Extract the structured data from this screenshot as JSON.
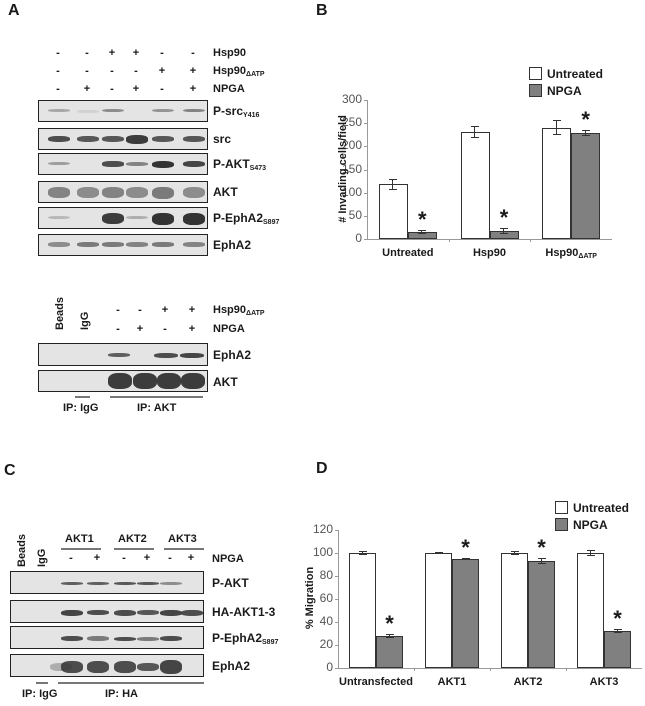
{
  "panels": {
    "A": {
      "letter": "A",
      "top_blot": {
        "conditions": [
          {
            "label": "Hsp90",
            "sub": "",
            "signs": [
              "-",
              "-",
              "+",
              "+",
              "-",
              "-"
            ]
          },
          {
            "label": "Hsp90",
            "sub": "ΔATP",
            "signs": [
              "-",
              "-",
              "-",
              "-",
              "+",
              "+"
            ]
          },
          {
            "label": "NPGA",
            "sub": "",
            "signs": [
              "-",
              "+",
              "-",
              "+",
              "-",
              "+"
            ]
          }
        ],
        "rows": [
          {
            "label": "P-src",
            "sub": "Y416"
          },
          {
            "label": "src",
            "sub": ""
          },
          {
            "label": "P-AKT",
            "sub": "S473"
          },
          {
            "label": "AKT",
            "sub": ""
          },
          {
            "label": "P-EphA2",
            "sub": "S897"
          },
          {
            "label": "EphA2",
            "sub": ""
          }
        ]
      },
      "ip_blot": {
        "lane_labels": [
          "Beads",
          "IgG"
        ],
        "conditions": [
          {
            "label": "Hsp90",
            "sub": "ΔATP",
            "signs": [
              "-",
              "-",
              "+",
              "+"
            ]
          },
          {
            "label": "NPGA",
            "sub": "",
            "signs": [
              "-",
              "+",
              "-",
              "+"
            ]
          }
        ],
        "rows": [
          {
            "label": "EphA2",
            "sub": ""
          },
          {
            "label": "AKT",
            "sub": ""
          }
        ],
        "ip_groups": [
          "IP: IgG",
          "IP: AKT"
        ]
      }
    },
    "B": {
      "letter": "B"
    },
    "C": {
      "letter": "C",
      "lane_labels": [
        "Beads",
        "IgG"
      ],
      "groups": [
        "AKT1",
        "AKT2",
        "AKT3"
      ],
      "condition": {
        "label": "NPGA",
        "signs": [
          "-",
          "+",
          "-",
          "+",
          "-",
          "+"
        ]
      },
      "rows": [
        {
          "label": "P-AKT",
          "sub": ""
        },
        {
          "label": "HA-AKT1-3",
          "sub": ""
        },
        {
          "label": "P-EphA2",
          "sub": "S897"
        },
        {
          "label": "EphA2",
          "sub": ""
        }
      ],
      "ip_groups": [
        "IP: IgG",
        "IP: HA"
      ]
    },
    "D": {
      "letter": "D"
    }
  },
  "chart_data": [
    {
      "panel": "B",
      "type": "bar",
      "title": "",
      "xlabel": "",
      "ylabel": "# Invading cells/field",
      "ylim": [
        0,
        300
      ],
      "yticks": [
        0,
        50,
        100,
        150,
        200,
        250,
        300
      ],
      "categories": [
        "Untreated",
        "Hsp90",
        "Hsp90ΔATP"
      ],
      "series": [
        {
          "name": "Untreated",
          "color": "#ffffff",
          "values": [
            118,
            230,
            240
          ],
          "errors": [
            12,
            13,
            16
          ]
        },
        {
          "name": "NPGA",
          "color": "#808080",
          "values": [
            15,
            17,
            229
          ],
          "errors": [
            5,
            6,
            7
          ]
        }
      ],
      "annotations": [
        "* over NPGA Untreated",
        "* over NPGA Hsp90",
        "* over NPGA Hsp90ΔATP"
      ],
      "legend": {
        "position": "top-right",
        "entries": [
          "Untreated",
          "NPGA"
        ]
      },
      "grid": false
    },
    {
      "panel": "D",
      "type": "bar",
      "title": "",
      "xlabel": "",
      "ylabel": "% Migration",
      "ylim": [
        0,
        120
      ],
      "yticks": [
        0,
        20,
        40,
        60,
        80,
        100,
        120
      ],
      "categories": [
        "Untransfected",
        "AKT1",
        "AKT2",
        "AKT3"
      ],
      "series": [
        {
          "name": "Untreated",
          "color": "#ffffff",
          "values": [
            100,
            100,
            100,
            100
          ],
          "errors": [
            1.5,
            1,
            1.5,
            2.5
          ]
        },
        {
          "name": "NPGA",
          "color": "#808080",
          "values": [
            28,
            95,
            93,
            32
          ],
          "errors": [
            1.5,
            1,
            3,
            1.5
          ]
        }
      ],
      "annotations": [
        "* over NPGA Untransfected",
        "* over NPGA AKT1",
        "* over NPGA AKT2",
        "* over NPGA AKT3"
      ],
      "legend": {
        "position": "top-right",
        "entries": [
          "Untreated",
          "NPGA"
        ]
      },
      "grid": false
    }
  ]
}
